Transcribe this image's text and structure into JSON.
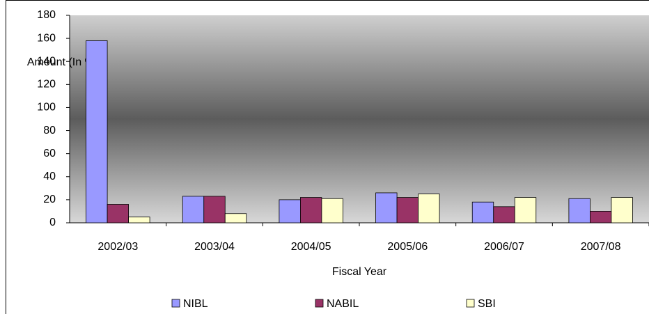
{
  "chart_data": {
    "type": "bar",
    "y_label": "Amount (In %)",
    "x_label": "Fiscal Year",
    "categories": [
      "2002/03",
      "2003/04",
      "2004/05",
      "2005/06",
      "2006/07",
      "2007/08"
    ],
    "series": [
      {
        "name": "NIBL",
        "color": "#9999ff",
        "values": [
          158,
          23,
          20,
          26,
          18,
          21
        ]
      },
      {
        "name": "NABIL",
        "color": "#993366",
        "values": [
          16,
          23,
          22,
          22,
          14,
          10
        ]
      },
      {
        "name": "SBI",
        "color": "#ffffcc",
        "values": [
          5,
          8,
          21,
          25,
          22,
          22
        ]
      }
    ],
    "ylim": [
      0,
      180
    ],
    "yticks": [
      0,
      20,
      40,
      60,
      80,
      100,
      120,
      140,
      160,
      180
    ],
    "legend": "bottom"
  }
}
